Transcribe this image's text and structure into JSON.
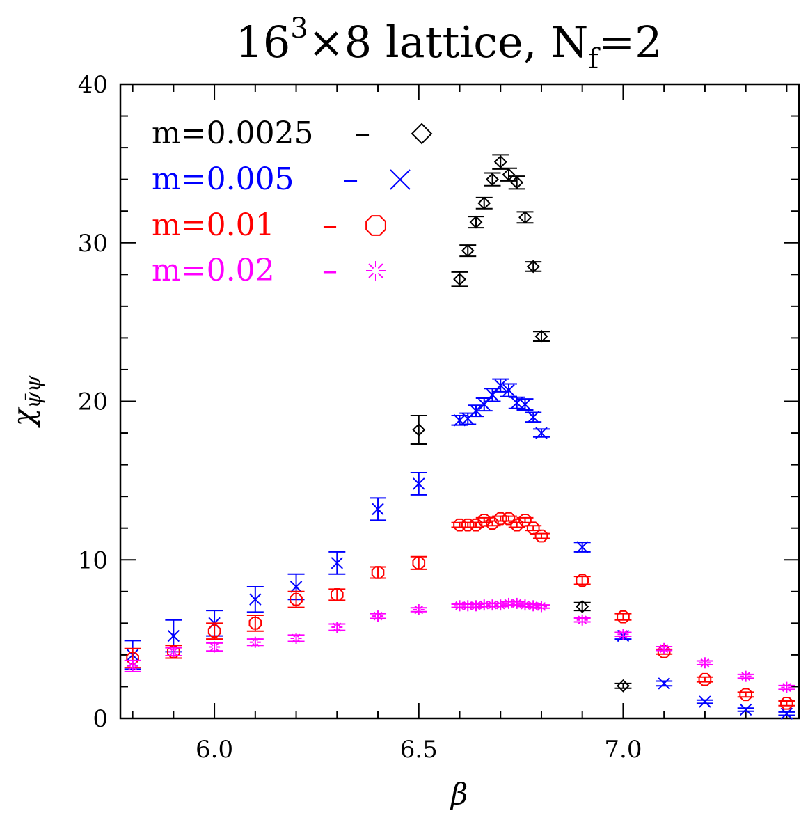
{
  "chart_data": {
    "type": "scatter",
    "title": {
      "base": "16",
      "sup": "3",
      "middle": "×8 lattice, N",
      "sub": "f",
      "end": "=2"
    },
    "xlabel": "β",
    "ylabel": {
      "base": "χ",
      "sub": "ψ̄ψ"
    },
    "xlim": [
      5.77,
      7.43
    ],
    "ylim": [
      0,
      40
    ],
    "x_ticks": [
      "6.0",
      "6.5",
      "7.0"
    ],
    "y_ticks": [
      "0",
      "10",
      "20",
      "30",
      "40"
    ],
    "legend_placement": "top-left",
    "series": [
      {
        "name": "m=0.0025",
        "dash": "–",
        "marker": "diamond",
        "color": "#000000",
        "points": [
          [
            6.5,
            18.2,
            0.9
          ],
          [
            6.6,
            27.7,
            0.45
          ],
          [
            6.62,
            29.5,
            0.35
          ],
          [
            6.64,
            31.3,
            0.35
          ],
          [
            6.66,
            32.5,
            0.35
          ],
          [
            6.68,
            34.0,
            0.4
          ],
          [
            6.7,
            35.1,
            0.45
          ],
          [
            6.72,
            34.3,
            0.4
          ],
          [
            6.74,
            33.8,
            0.4
          ],
          [
            6.76,
            31.6,
            0.35
          ],
          [
            6.78,
            28.5,
            0.3
          ],
          [
            6.8,
            24.1,
            0.3
          ],
          [
            6.9,
            7.05,
            0.25
          ],
          [
            7.0,
            2.05,
            0.15
          ]
        ]
      },
      {
        "name": "m=0.005",
        "dash": "–",
        "marker": "cross",
        "color": "#0000ff",
        "points": [
          [
            5.8,
            4.0,
            0.9
          ],
          [
            5.9,
            5.2,
            1.0
          ],
          [
            6.0,
            6.0,
            0.8
          ],
          [
            6.1,
            7.5,
            0.8
          ],
          [
            6.2,
            8.3,
            0.8
          ],
          [
            6.3,
            9.8,
            0.7
          ],
          [
            6.4,
            13.2,
            0.7
          ],
          [
            6.5,
            14.8,
            0.7
          ],
          [
            6.6,
            18.8,
            0.3
          ],
          [
            6.62,
            18.9,
            0.35
          ],
          [
            6.64,
            19.4,
            0.35
          ],
          [
            6.66,
            19.8,
            0.4
          ],
          [
            6.68,
            20.4,
            0.4
          ],
          [
            6.7,
            21.0,
            0.4
          ],
          [
            6.72,
            20.7,
            0.4
          ],
          [
            6.74,
            19.9,
            0.35
          ],
          [
            6.76,
            19.8,
            0.35
          ],
          [
            6.78,
            19.0,
            0.3
          ],
          [
            6.8,
            18.0,
            0.25
          ],
          [
            6.9,
            10.8,
            0.3
          ],
          [
            7.0,
            5.2,
            0.2
          ],
          [
            7.1,
            2.2,
            0.15
          ],
          [
            7.2,
            1.05,
            0.1
          ],
          [
            7.3,
            0.55,
            0.1
          ],
          [
            7.4,
            0.3,
            0.1
          ]
        ]
      },
      {
        "name": "m=0.01",
        "dash": "–",
        "marker": "octagon",
        "color": "#ff0000",
        "points": [
          [
            5.8,
            3.8,
            0.6
          ],
          [
            5.9,
            4.2,
            0.4
          ],
          [
            6.0,
            5.5,
            0.5
          ],
          [
            6.1,
            6.0,
            0.5
          ],
          [
            6.2,
            7.5,
            0.5
          ],
          [
            6.3,
            7.8,
            0.35
          ],
          [
            6.4,
            9.2,
            0.35
          ],
          [
            6.5,
            9.8,
            0.4
          ],
          [
            6.6,
            12.2,
            0.15
          ],
          [
            6.62,
            12.2,
            0.15
          ],
          [
            6.64,
            12.2,
            0.15
          ],
          [
            6.66,
            12.5,
            0.15
          ],
          [
            6.68,
            12.3,
            0.15
          ],
          [
            6.7,
            12.6,
            0.15
          ],
          [
            6.72,
            12.6,
            0.15
          ],
          [
            6.74,
            12.2,
            0.15
          ],
          [
            6.76,
            12.5,
            0.15
          ],
          [
            6.78,
            12.0,
            0.15
          ],
          [
            6.8,
            11.5,
            0.15
          ],
          [
            6.9,
            8.7,
            0.25
          ],
          [
            7.0,
            6.4,
            0.2
          ],
          [
            7.1,
            4.2,
            0.15
          ],
          [
            7.2,
            2.45,
            0.15
          ],
          [
            7.3,
            1.5,
            0.15
          ],
          [
            7.4,
            0.95,
            0.15
          ]
        ]
      },
      {
        "name": "m=0.02",
        "dash": "–",
        "marker": "burst",
        "color": "#ff00ff",
        "points": [
          [
            5.8,
            3.3,
            0.35
          ],
          [
            5.9,
            4.2,
            0.25
          ],
          [
            6.0,
            4.5,
            0.25
          ],
          [
            6.1,
            4.8,
            0.2
          ],
          [
            6.2,
            5.05,
            0.2
          ],
          [
            6.3,
            5.75,
            0.2
          ],
          [
            6.4,
            6.45,
            0.15
          ],
          [
            6.5,
            6.85,
            0.12
          ],
          [
            6.6,
            7.1,
            0.1
          ],
          [
            6.62,
            7.1,
            0.1
          ],
          [
            6.64,
            7.1,
            0.1
          ],
          [
            6.66,
            7.15,
            0.1
          ],
          [
            6.68,
            7.15,
            0.1
          ],
          [
            6.7,
            7.15,
            0.1
          ],
          [
            6.72,
            7.25,
            0.1
          ],
          [
            6.74,
            7.25,
            0.1
          ],
          [
            6.76,
            7.15,
            0.1
          ],
          [
            6.78,
            7.1,
            0.1
          ],
          [
            6.8,
            7.05,
            0.1
          ],
          [
            6.9,
            6.2,
            0.12
          ],
          [
            7.0,
            5.3,
            0.12
          ],
          [
            7.1,
            4.4,
            0.12
          ],
          [
            7.2,
            3.5,
            0.12
          ],
          [
            7.3,
            2.65,
            0.12
          ],
          [
            7.4,
            1.95,
            0.12
          ]
        ]
      }
    ]
  }
}
